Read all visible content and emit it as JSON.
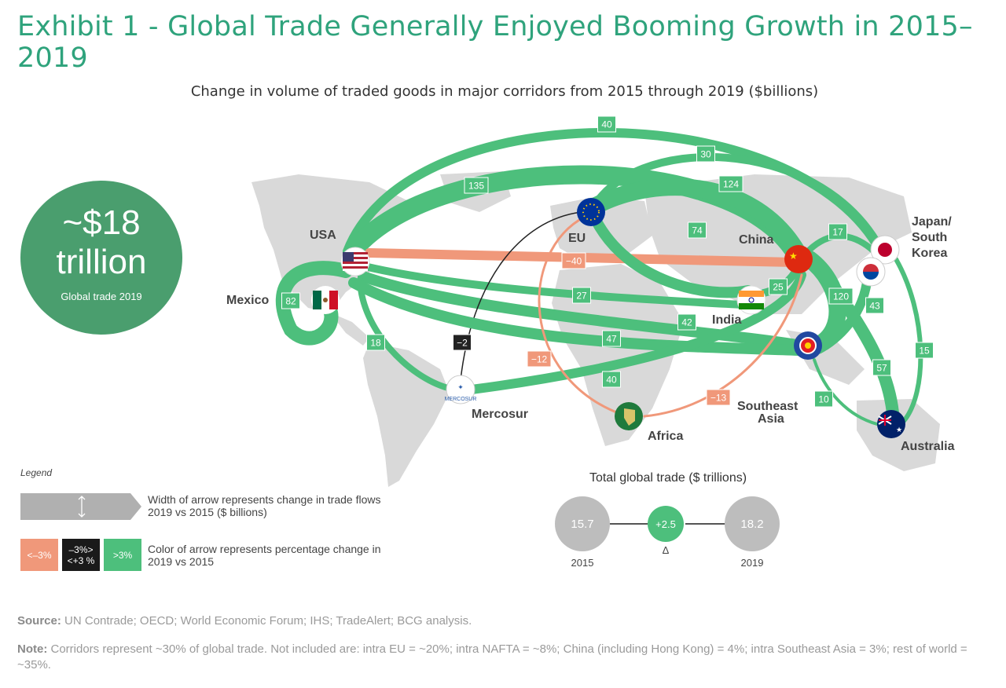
{
  "title": "Exhibit 1 - Global Trade Generally Enjoyed Booming Growth in 2015–2019",
  "subtitle": "Change in volume of traded goods in major corridors from 2015 through 2019 ($billions)",
  "big_stat": {
    "line1": "~$18",
    "line2": "trillion",
    "caption": "Global trade 2019"
  },
  "colors": {
    "positive": "#4dbf7c",
    "negative": "#f0987a",
    "neutral": "#222222",
    "map": "#d9d9d9",
    "title": "#2fa37c"
  },
  "regions": {
    "usa": "USA",
    "mexico": "Mexico",
    "eu": "EU",
    "china": "China",
    "japan": [
      "Japan/",
      "South",
      "Korea"
    ],
    "india": "India",
    "mercosur": "Mercosur",
    "africa": "Africa",
    "sea": [
      "Southeast",
      "Asia"
    ],
    "australia": "Australia"
  },
  "chart_data": {
    "type": "flow-map",
    "units": "$billions",
    "corridors": [
      {
        "from": "USA",
        "to": "Japan/South Korea",
        "value": 40,
        "sign": "positive"
      },
      {
        "from": "EU",
        "to": "Japan/South Korea",
        "value": 30,
        "sign": "positive"
      },
      {
        "from": "USA",
        "to": "China",
        "value": 135,
        "sign": "positive"
      },
      {
        "from": "EU",
        "to": "China",
        "value": 124,
        "sign": "positive"
      },
      {
        "from": "USA",
        "to": "China (direct)",
        "value": -40,
        "sign": "negative"
      },
      {
        "from": "USA",
        "to": "Mexico",
        "value": 82,
        "sign": "positive"
      },
      {
        "from": "EU",
        "to": "India",
        "value": 74,
        "sign": "positive"
      },
      {
        "from": "China",
        "to": "Japan/South Korea",
        "value": 17,
        "sign": "positive"
      },
      {
        "from": "China",
        "to": "India",
        "value": 25,
        "sign": "positive"
      },
      {
        "from": "USA",
        "to": "India",
        "value": 27,
        "sign": "positive"
      },
      {
        "from": "USA",
        "to": "Southeast Asia",
        "value": 42,
        "sign": "positive"
      },
      {
        "from": "USA",
        "to": "Mercosur",
        "value": 18,
        "sign": "positive"
      },
      {
        "from": "EU",
        "to": "Mercosur",
        "value": -2,
        "sign": "neutral"
      },
      {
        "from": "USA",
        "to": "Southeast Asia (via Atlantic)",
        "value": 47,
        "sign": "positive"
      },
      {
        "from": "Mercosur",
        "to": "China",
        "value": 40,
        "sign": "positive"
      },
      {
        "from": "EU",
        "to": "Africa",
        "value": -12,
        "sign": "negative"
      },
      {
        "from": "China",
        "to": "Africa",
        "value": -13,
        "sign": "negative"
      },
      {
        "from": "China",
        "to": "Southeast Asia",
        "value": 120,
        "sign": "positive"
      },
      {
        "from": "Japan/South Korea",
        "to": "Southeast Asia",
        "value": 43,
        "sign": "positive"
      },
      {
        "from": "Japan/South Korea",
        "to": "Australia",
        "value": 15,
        "sign": "positive"
      },
      {
        "from": "China",
        "to": "Australia",
        "value": 57,
        "sign": "positive"
      },
      {
        "from": "Southeast Asia",
        "to": "Australia",
        "value": 10,
        "sign": "positive"
      }
    ],
    "total_global_trade": {
      "title": "Total global trade ($ trillions)",
      "values": [
        {
          "year": "2015",
          "value": 15.7
        },
        {
          "year": "2019",
          "value": 18.2
        }
      ],
      "delta": "+2.5",
      "delta_label": "Δ"
    }
  },
  "legend": {
    "title": "Legend",
    "width_text": "Width of arrow represents change in trade flows 2019 vs 2015 ($ billions)",
    "color_text": "Color of arrow represents percentage change in 2019 vs 2015",
    "boxes": [
      {
        "label": "<–3%",
        "color": "#f0987a"
      },
      {
        "label": "–3%>\n<+3 %",
        "color": "#1a1a1a"
      },
      {
        "label": ">3%",
        "color": "#4dbf7c"
      }
    ]
  },
  "source": {
    "label": "Source:",
    "text": " UN Contrade; OECD; World Economic Forum; IHS; TradeAlert; BCG analysis."
  },
  "note": {
    "label": "Note:",
    "text": " Corridors represent ~30% of global trade. Not included are: intra EU = ~20%; intra NAFTA = ~8%; China (including Hong Kong) = 4%; intra Southeast Asia = 3%; rest of world = ~35%."
  }
}
